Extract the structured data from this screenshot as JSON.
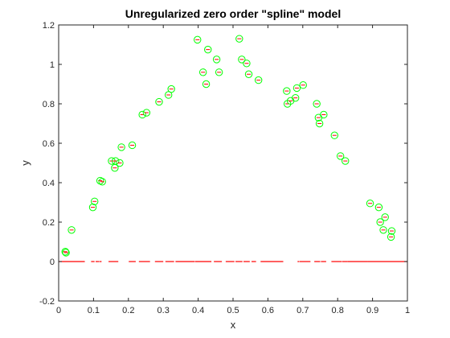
{
  "chart_data": {
    "type": "scatter",
    "title": "Unregularized zero order \"spline\" model",
    "xlabel": "x",
    "ylabel": "y",
    "xlim": [
      0,
      1
    ],
    "ylim": [
      -0.2,
      1.2
    ],
    "xticks": [
      "0",
      "0.1",
      "0.2",
      "0.3",
      "0.4",
      "0.5",
      "0.6",
      "0.7",
      "0.8",
      "0.9",
      "1"
    ],
    "yticks": [
      "-0.2",
      "0",
      "0.2",
      "0.4",
      "0.6",
      "0.8",
      "1",
      "1.2"
    ],
    "grid": false,
    "colors": {
      "data_marker": "#00ff00",
      "fit_line": "#ff0000",
      "axes": "#262626"
    },
    "series": [
      {
        "marker": "circle",
        "x": [
          0.019,
          0.021,
          0.037,
          0.098,
          0.103,
          0.119,
          0.125,
          0.152,
          0.161,
          0.163,
          0.175,
          0.18,
          0.211,
          0.24,
          0.252,
          0.288,
          0.315,
          0.323,
          0.398,
          0.414,
          0.423,
          0.428,
          0.453,
          0.46,
          0.518,
          0.525,
          0.539,
          0.545,
          0.573,
          0.654,
          0.656,
          0.665,
          0.679,
          0.683,
          0.701,
          0.74,
          0.745,
          0.748,
          0.76,
          0.791,
          0.808,
          0.822,
          0.893,
          0.918,
          0.922,
          0.931,
          0.936,
          0.953,
          0.955
        ],
        "y": [
          0.05,
          0.045,
          0.16,
          0.275,
          0.305,
          0.41,
          0.405,
          0.51,
          0.475,
          0.51,
          0.5,
          0.58,
          0.59,
          0.745,
          0.755,
          0.81,
          0.845,
          0.875,
          1.125,
          0.96,
          0.9,
          1.075,
          1.025,
          0.96,
          1.13,
          1.025,
          1.005,
          0.95,
          0.92,
          0.865,
          0.8,
          0.815,
          0.83,
          0.88,
          0.895,
          0.8,
          0.73,
          0.7,
          0.745,
          0.64,
          0.535,
          0.51,
          0.295,
          0.275,
          0.2,
          0.16,
          0.225,
          0.125,
          0.155
        ]
      },
      {
        "marker": "segments",
        "segments": [
          [
            0.0,
            0.075
          ],
          [
            0.093,
            0.103
          ],
          [
            0.106,
            0.116
          ],
          [
            0.117,
            0.123
          ],
          [
            0.143,
            0.171
          ],
          [
            0.201,
            0.221
          ],
          [
            0.23,
            0.262
          ],
          [
            0.276,
            0.3
          ],
          [
            0.306,
            0.331
          ],
          [
            0.335,
            0.39
          ],
          [
            0.391,
            0.438
          ],
          [
            0.445,
            0.468
          ],
          [
            0.479,
            0.504
          ],
          [
            0.507,
            0.527
          ],
          [
            0.53,
            0.548
          ],
          [
            0.553,
            0.566
          ],
          [
            0.579,
            0.644
          ],
          [
            0.685,
            0.689
          ],
          [
            0.69,
            0.722
          ],
          [
            0.733,
            0.75
          ],
          [
            0.752,
            0.767
          ],
          [
            0.782,
            0.812
          ],
          [
            0.813,
            0.829
          ],
          [
            0.829,
            0.887
          ],
          [
            0.887,
            1.0
          ]
        ],
        "y": 0
      }
    ]
  }
}
